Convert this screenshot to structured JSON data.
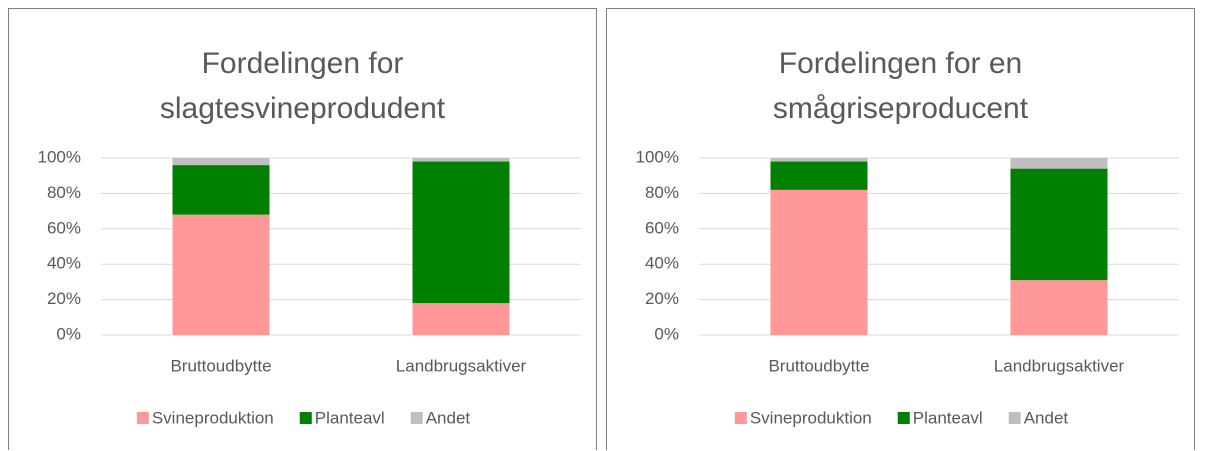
{
  "charts": [
    {
      "type": "bar",
      "stacked": true,
      "title": "Fordelingen for slagtesvineprodudent",
      "categories": [
        "Bruttoudbytte",
        "Landbrugsaktiver"
      ],
      "series": [
        {
          "name": "Svineproduktion",
          "color": "#ff9999",
          "values": [
            68,
            18
          ]
        },
        {
          "name": "Planteavl",
          "color": "#008000",
          "values": [
            28,
            80
          ]
        },
        {
          "name": "Andet",
          "color": "#bfbfbf",
          "values": [
            4,
            2
          ]
        }
      ],
      "ylim": [
        0,
        100
      ],
      "yticks": [
        {
          "value": 0,
          "label": "0%"
        },
        {
          "value": 20,
          "label": "20%"
        },
        {
          "value": 40,
          "label": "40%"
        },
        {
          "value": 60,
          "label": "60%"
        },
        {
          "value": 80,
          "label": "80%"
        },
        {
          "value": 100,
          "label": "100%"
        }
      ],
      "grid": true,
      "legend": "bottom"
    },
    {
      "type": "bar",
      "stacked": true,
      "title": "Fordelingen for en smågriseproducent",
      "categories": [
        "Bruttoudbytte",
        "Landbrugsaktiver"
      ],
      "series": [
        {
          "name": "Svineproduktion",
          "color": "#ff9999",
          "values": [
            82,
            31
          ]
        },
        {
          "name": "Planteavl",
          "color": "#008000",
          "values": [
            16,
            63
          ]
        },
        {
          "name": "Andet",
          "color": "#bfbfbf",
          "values": [
            2,
            6
          ]
        }
      ],
      "ylim": [
        0,
        100
      ],
      "yticks": [
        {
          "value": 0,
          "label": "0%"
        },
        {
          "value": 20,
          "label": "20%"
        },
        {
          "value": 40,
          "label": "40%"
        },
        {
          "value": 60,
          "label": "60%"
        },
        {
          "value": 80,
          "label": "80%"
        },
        {
          "value": 100,
          "label": "100%"
        }
      ],
      "grid": true,
      "legend": "bottom"
    }
  ]
}
